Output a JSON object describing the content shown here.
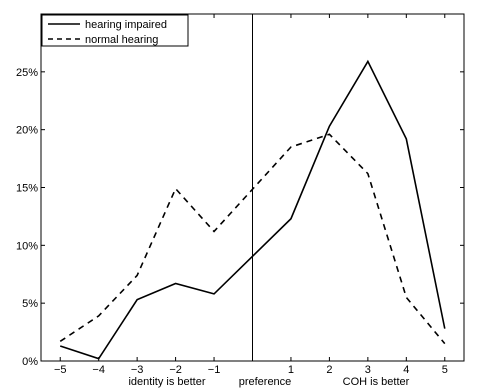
{
  "chart_data": {
    "type": "line",
    "x": [
      -5,
      -4,
      -3,
      -2,
      -1,
      1,
      2,
      3,
      4,
      5
    ],
    "xticks": [
      -5,
      -4,
      -3,
      -2,
      -1,
      1,
      2,
      3,
      4,
      5
    ],
    "xlim": [
      -5.5,
      5.5
    ],
    "ylim": [
      0,
      30
    ],
    "yticks": [
      0,
      5,
      10,
      15,
      20,
      25
    ],
    "ytick_labels": [
      "0%",
      "5%",
      "10%",
      "15%",
      "20%",
      "25%"
    ],
    "xtick_labels": [
      "−5",
      "−4",
      "−3",
      "−2",
      "−1",
      "1",
      "2",
      "3",
      "4",
      "5"
    ],
    "reference_line_x": 0,
    "xlabels": {
      "left": "identity is better",
      "center": "preference",
      "right": "COH is better"
    },
    "series": [
      {
        "name": "hearing impaired",
        "style": "solid",
        "color": "#000000",
        "values": [
          1.3,
          0.2,
          5.3,
          6.7,
          5.8,
          12.3,
          20.3,
          25.9,
          19.2,
          2.8
        ]
      },
      {
        "name": "normal hearing",
        "style": "dashed",
        "color": "#000000",
        "values": [
          1.7,
          3.9,
          7.4,
          14.9,
          11.2,
          18.5,
          19.6,
          16.2,
          5.5,
          1.5
        ]
      }
    ],
    "legend_position": "top-left",
    "grid": false,
    "title": ""
  }
}
